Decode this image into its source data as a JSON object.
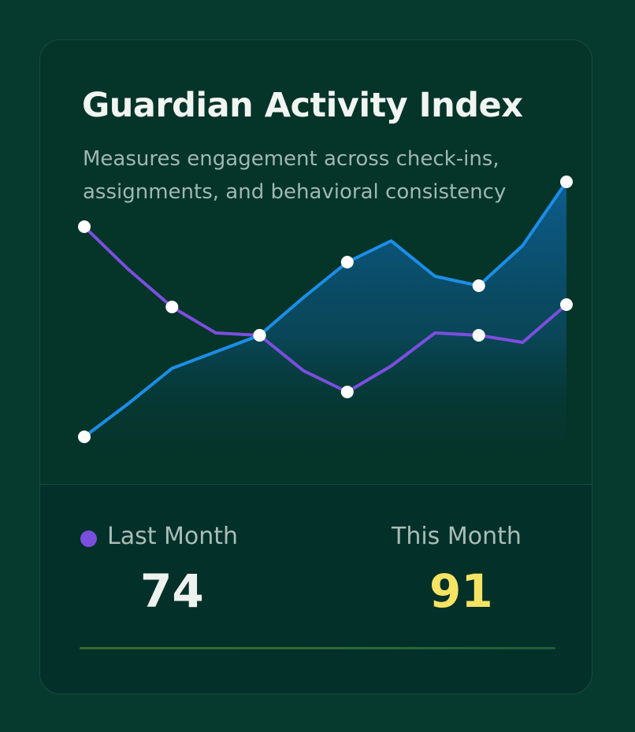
{
  "card": {
    "title": "Guardian Activity Index",
    "subtitle": "Measures engagement across check-ins, assignments, and behavioral consistency"
  },
  "stats": {
    "last": {
      "label": "Last Month",
      "value": "74"
    },
    "this": {
      "label": "This Month",
      "value": "91"
    }
  },
  "colors": {
    "background": "#073a2e",
    "card": "#053429",
    "this_month_line": "#1b8ee8",
    "last_month_line": "#7b4fde",
    "this_month_value": "#f5e463",
    "marker": "#ffffff"
  },
  "chart_data": {
    "type": "line",
    "x": [
      0,
      1,
      2,
      3,
      4,
      5,
      6,
      7,
      8,
      9,
      10,
      11
    ],
    "ylim": [
      0,
      100
    ],
    "grid": false,
    "area_fill_series": "This Month",
    "series": [
      {
        "name": "This Month",
        "values": [
          12,
          26,
          41,
          48,
          55,
          71,
          86,
          95,
          80,
          76,
          93,
          120
        ],
        "markers": [
          0,
          4,
          6,
          9,
          11
        ]
      },
      {
        "name": "Last Month",
        "values": [
          101,
          83,
          67,
          56,
          55,
          40,
          31,
          42,
          56,
          55,
          52,
          68
        ],
        "markers": [
          0,
          2,
          4,
          6,
          9,
          11
        ]
      }
    ]
  }
}
